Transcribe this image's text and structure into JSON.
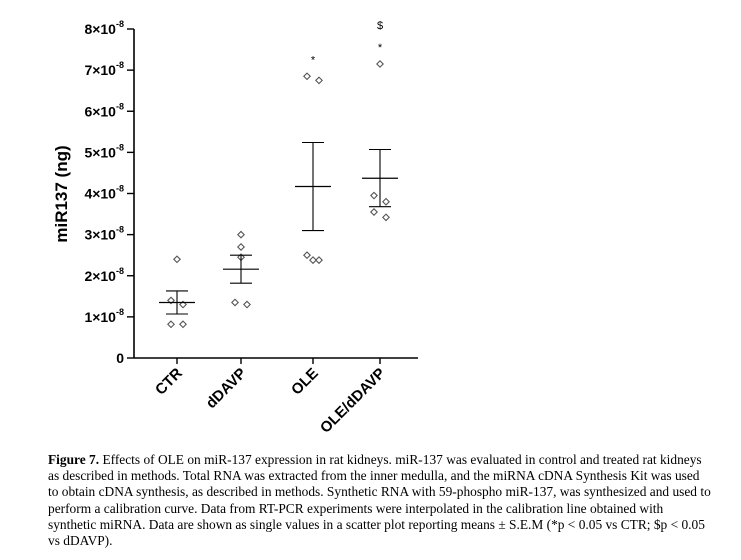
{
  "chart_data": {
    "type": "scatter",
    "ylabel": "miR137 (ng)",
    "ylim": [
      0,
      8e-08
    ],
    "y_ticks": [
      {
        "value": 0,
        "mantissa": "0",
        "exponent": ""
      },
      {
        "value": 1e-08,
        "mantissa": "1×10",
        "exponent": "-8"
      },
      {
        "value": 2e-08,
        "mantissa": "2×10",
        "exponent": "-8"
      },
      {
        "value": 3e-08,
        "mantissa": "3×10",
        "exponent": "-8"
      },
      {
        "value": 4e-08,
        "mantissa": "4×10",
        "exponent": "-8"
      },
      {
        "value": 5e-08,
        "mantissa": "5×10",
        "exponent": "-8"
      },
      {
        "value": 6e-08,
        "mantissa": "6×10",
        "exponent": "-8"
      },
      {
        "value": 7e-08,
        "mantissa": "7×10",
        "exponent": "-8"
      },
      {
        "value": 8e-08,
        "mantissa": "8×10",
        "exponent": "-8"
      }
    ],
    "categories": [
      "CTR",
      "dDAVP",
      "OLE",
      "OLE/dDAVP"
    ],
    "groups": [
      {
        "category": "CTR",
        "points": [
          2.4e-08,
          1.4e-08,
          1.3e-08,
          8.2e-09,
          8.2e-09
        ],
        "mean": 1.35e-08,
        "sem_low": 1.07e-08,
        "sem_high": 1.63e-08,
        "annotations": []
      },
      {
        "category": "dDAVP",
        "points": [
          3e-08,
          2.7e-08,
          2.45e-08,
          1.35e-08,
          1.3e-08
        ],
        "mean": 2.16e-08,
        "sem_low": 1.82e-08,
        "sem_high": 2.5e-08,
        "annotations": []
      },
      {
        "category": "OLE",
        "points": [
          6.85e-08,
          6.75e-08,
          2.5e-08,
          2.38e-08,
          2.38e-08
        ],
        "mean": 4.17e-08,
        "sem_low": 3.1e-08,
        "sem_high": 5.24e-08,
        "annotations": [
          "*"
        ]
      },
      {
        "category": "OLE/dDAVP",
        "points": [
          7.15e-08,
          3.95e-08,
          3.8e-08,
          3.55e-08,
          3.42e-08
        ],
        "mean": 4.37e-08,
        "sem_low": 3.68e-08,
        "sem_high": 5.07e-08,
        "annotations": [
          "*",
          "$"
        ]
      }
    ]
  },
  "caption": {
    "lead": "Figure 7.",
    "text": "Effects of OLE on miR-137 expression in rat kidneys. miR-137 was evaluated in control and treated rat kidneys as described in methods. Total RNA was extracted from the inner medulla, and the miRNA cDNA Synthesis Kit was used to obtain cDNA synthesis, as described in methods. Synthetic RNA with 59-phospho miR-137, was synthesized and used to perform a calibration curve. Data from RT-PCR experiments were interpolated in the calibration line obtained with synthetic miRNA. Data are shown as single values in a scatter plot reporting means ± S.E.M (*p < 0.05 vs CTR; $p < 0.05 vs dDAVP)."
  }
}
